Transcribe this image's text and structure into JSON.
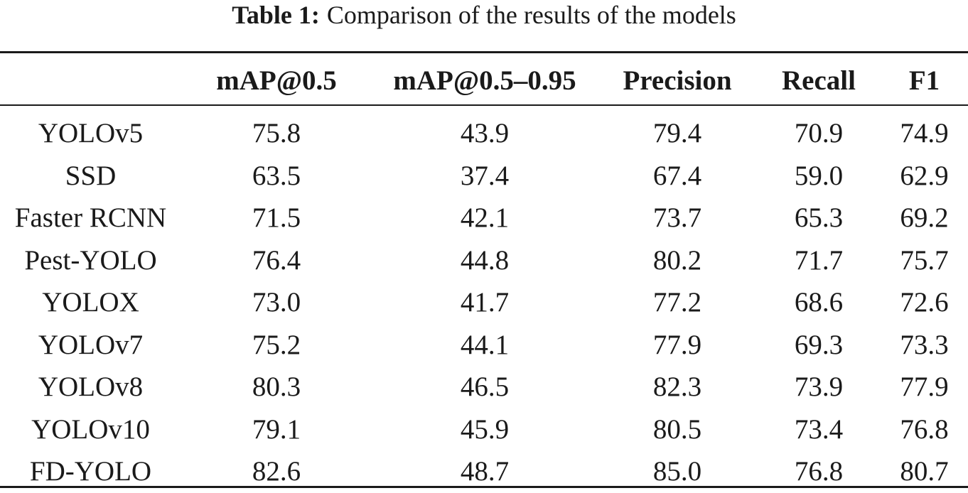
{
  "caption": {
    "label": "Table 1:",
    "text": "Comparison of the results of the models"
  },
  "table": {
    "headers": [
      "",
      "mAP@0.5",
      "mAP@0.5–0.95",
      "Precision",
      "Recall",
      "F1"
    ],
    "rows": [
      [
        "YOLOv5",
        "75.8",
        "43.9",
        "79.4",
        "70.9",
        "74.9"
      ],
      [
        "SSD",
        "63.5",
        "37.4",
        "67.4",
        "59.0",
        "62.9"
      ],
      [
        "Faster RCNN",
        "71.5",
        "42.1",
        "73.7",
        "65.3",
        "69.2"
      ],
      [
        "Pest-YOLO",
        "76.4",
        "44.8",
        "80.2",
        "71.7",
        "75.7"
      ],
      [
        "YOLOX",
        "73.0",
        "41.7",
        "77.2",
        "68.6",
        "72.6"
      ],
      [
        "YOLOv7",
        "75.2",
        "44.1",
        "77.9",
        "69.3",
        "73.3"
      ],
      [
        "YOLOv8",
        "80.3",
        "46.5",
        "82.3",
        "73.9",
        "77.9"
      ],
      [
        "YOLOv10",
        "79.1",
        "45.9",
        "80.5",
        "73.4",
        "76.8"
      ],
      [
        "FD-YOLO",
        "82.6",
        "48.7",
        "85.0",
        "76.8",
        "80.7"
      ]
    ]
  }
}
